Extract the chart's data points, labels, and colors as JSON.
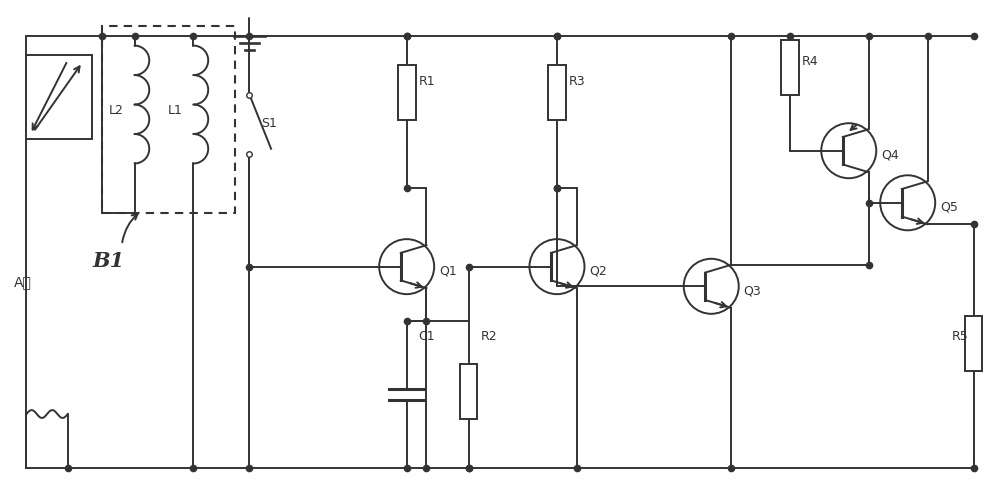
{
  "bg_color": "#ffffff",
  "line_color": "#333333",
  "line_width": 1.4,
  "figsize": [
    10.0,
    4.94
  ],
  "dpi": 100,
  "xlim": [
    0,
    10
  ],
  "ylim": [
    0,
    5.0
  ]
}
